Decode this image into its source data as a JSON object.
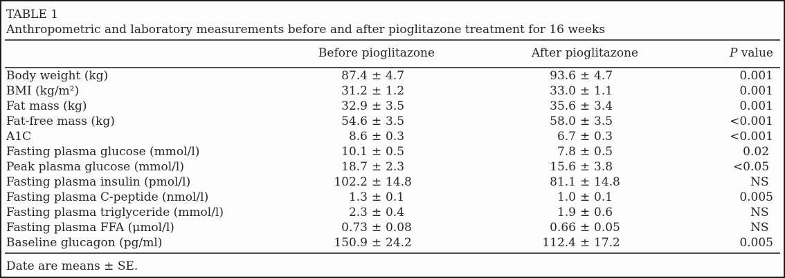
{
  "table_label": "TABLE 1",
  "caption": "Anthropometric and laboratory measurements before and after pioglitazone treatment for 16 weeks",
  "symbols": {
    "plus_minus": "±"
  },
  "columns": {
    "before": "Before pioglitazone",
    "after": "After pioglitazone",
    "p_italic": "P",
    "p_rest": " value"
  },
  "table": {
    "rows": [
      {
        "label": "Body weight (kg)",
        "before": {
          "mean": "87.4",
          "se": "4.7"
        },
        "after": {
          "mean": "93.6",
          "se": "4.7"
        },
        "p": "0.001"
      },
      {
        "label": "BMI (kg/m²)",
        "before": {
          "mean": "31.2",
          "se": "1.2"
        },
        "after": {
          "mean": "33.0",
          "se": "1.1"
        },
        "p": "0.001"
      },
      {
        "label": "Fat mass (kg)",
        "before": {
          "mean": "32.9",
          "se": "3.5"
        },
        "after": {
          "mean": "35.6",
          "se": "3.4"
        },
        "p": "0.001"
      },
      {
        "label": "Fat-free mass (kg)",
        "before": {
          "mean": "54.6",
          "se": "3.5"
        },
        "after": {
          "mean": "58.0",
          "se": "3.5"
        },
        "p": "<0.001"
      },
      {
        "label": "A1C",
        "before": {
          "mean": "8.6",
          "se": "0.3"
        },
        "after": {
          "mean": "6.7",
          "se": "0.3"
        },
        "p": "<0.001"
      },
      {
        "label": "Fasting plasma glucose (mmol/l)",
        "before": {
          "mean": "10.1",
          "se": "0.5"
        },
        "after": {
          "mean": "7.8",
          "se": "0.5"
        },
        "p": "0.02"
      },
      {
        "label": "Peak plasma glucose (mmol/l)",
        "before": {
          "mean": "18.7",
          "se": "2.3"
        },
        "after": {
          "mean": "15.6",
          "se": "3.8"
        },
        "p": "<0.05"
      },
      {
        "label": "Fasting plasma insulin (pmol/l)",
        "before": {
          "mean": "102.2",
          "se": "14.8"
        },
        "after": {
          "mean": "81.1",
          "se": "14.8"
        },
        "p": "NS"
      },
      {
        "label": "Fasting plasma C-peptide (nmol/l)",
        "before": {
          "mean": "1.3",
          "se": "0.1"
        },
        "after": {
          "mean": "1.0",
          "se": "0.1"
        },
        "p": "0.005"
      },
      {
        "label": "Fasting plasma triglyceride (mmol/l)",
        "before": {
          "mean": "2.3",
          "se": "0.4"
        },
        "after": {
          "mean": "1.9",
          "se": "0.6"
        },
        "p": "NS"
      },
      {
        "label": "Fasting plasma FFA (μmol/l)",
        "before": {
          "mean": "0.73",
          "se": "0.08"
        },
        "after": {
          "mean": "0.66",
          "se": "0.05"
        },
        "p": "NS"
      },
      {
        "label": "Baseline glucagon (pg/ml)",
        "before": {
          "mean": "150.9",
          "se": "24.2"
        },
        "after": {
          "mean": "112.4",
          "se": "17.2"
        },
        "p": "0.005"
      }
    ]
  },
  "footnote": "Date are means ± SE."
}
